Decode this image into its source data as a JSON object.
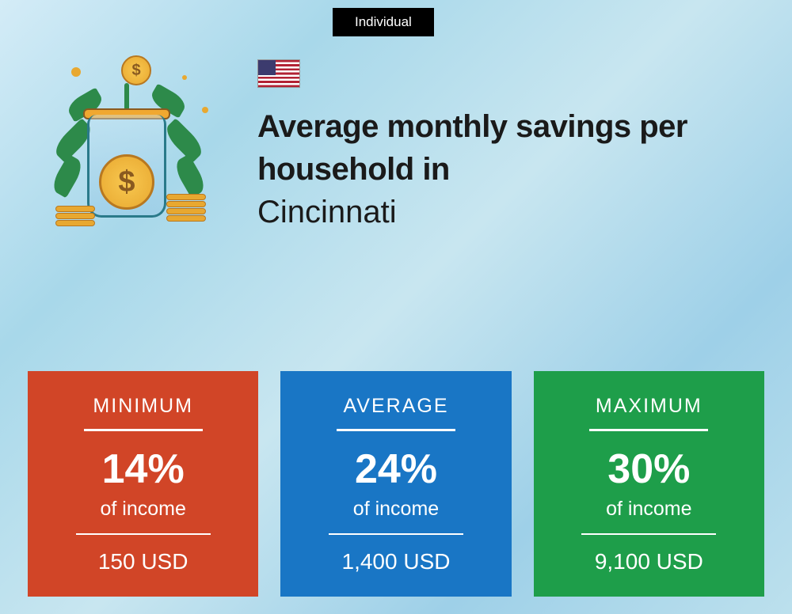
{
  "badge": "Individual",
  "title_bold": "Average monthly savings per household in",
  "title_city": "Cincinnati",
  "cards": [
    {
      "label": "MINIMUM",
      "percent": "14%",
      "subtext": "of income",
      "amount": "150 USD",
      "color": "#d14527"
    },
    {
      "label": "AVERAGE",
      "percent": "24%",
      "subtext": "of income",
      "amount": "1,400 USD",
      "color": "#1976c5"
    },
    {
      "label": "MAXIMUM",
      "percent": "30%",
      "subtext": "of income",
      "amount": "9,100 USD",
      "color": "#1e9e4a"
    }
  ]
}
